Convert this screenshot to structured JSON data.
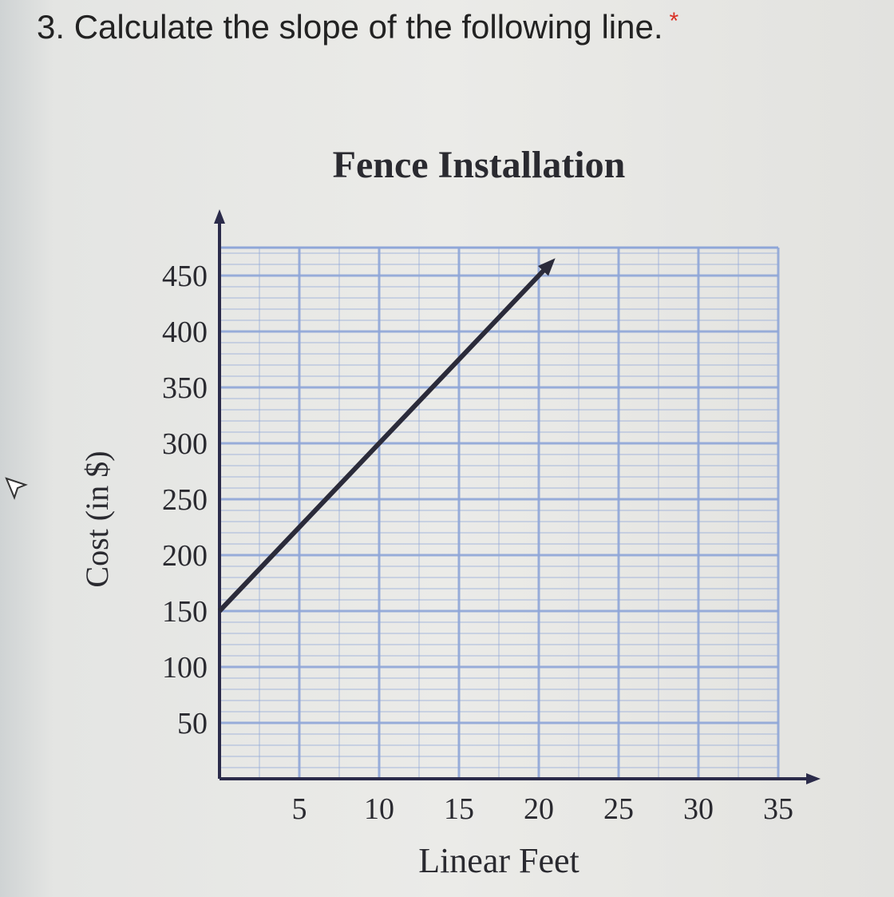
{
  "question": {
    "text": "3. Calculate the slope of the following line.",
    "required_marker": "*"
  },
  "chart_data": {
    "type": "line",
    "title": "Fence Installation",
    "xlabel": "Linear Feet",
    "ylabel": "Cost (in $)",
    "xlim": [
      0,
      35
    ],
    "ylim": [
      0,
      475
    ],
    "xticks": [
      "5",
      "10",
      "15",
      "20",
      "25",
      "30",
      "35"
    ],
    "yticks": [
      "50",
      "100",
      "150",
      "200",
      "250",
      "300",
      "350",
      "400",
      "450"
    ],
    "grid": true,
    "series": [
      {
        "x": [
          0,
          20
        ],
        "y": [
          150,
          450
        ],
        "arrow_end": true
      }
    ],
    "colors": {
      "grid": "#8fa6d8",
      "line": "#2b2b3a",
      "axis": "#2b2b4a"
    }
  }
}
